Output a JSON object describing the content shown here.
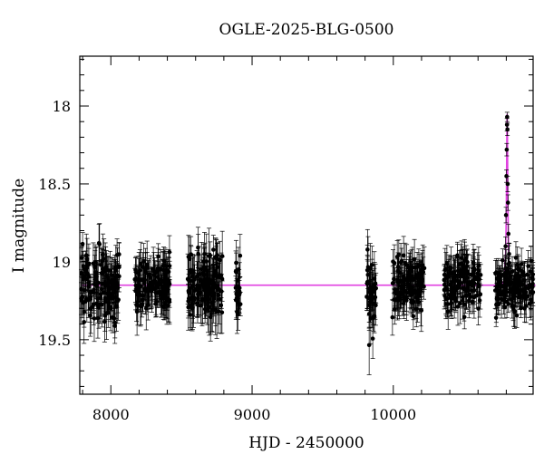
{
  "chart_data": {
    "type": "scatter",
    "title": "OGLE-2025-BLG-0500",
    "xlabel": "HJD - 2450000",
    "ylabel": "I magnitude",
    "xlim": [
      7780,
      10990
    ],
    "ylim": [
      19.85,
      17.68
    ],
    "y_inverted": true,
    "grid": false,
    "x_ticks": [
      8000,
      9000,
      10000
    ],
    "x_tick_labels": [
      "8000",
      "9000",
      "10000"
    ],
    "y_ticks": [
      18,
      18.5,
      19,
      19.5
    ],
    "y_tick_labels": [
      "18",
      "18.5",
      "19",
      "19.5"
    ],
    "series": [
      {
        "kind": "points_with_errorbars",
        "color": "#000000",
        "baseline_mag": 19.15,
        "seasons": [
          {
            "x_range": [
              7790,
              8060
            ],
            "mag_center": 19.15,
            "mag_scatter": 0.12,
            "err": 0.12
          },
          {
            "x_range": [
              8170,
              8420
            ],
            "mag_center": 19.15,
            "mag_scatter": 0.1,
            "err": 0.11
          },
          {
            "x_range": [
              8540,
              8790
            ],
            "mag_center": 19.16,
            "mag_scatter": 0.12,
            "err": 0.13
          },
          {
            "x_range": [
              8880,
              8920
            ],
            "mag_center": 19.15,
            "mag_scatter": 0.12,
            "err": 0.12
          },
          {
            "x_range": [
              9810,
              9880
            ],
            "mag_center": 19.2,
            "mag_scatter": 0.16,
            "err": 0.14
          },
          {
            "x_range": [
              9990,
              10220
            ],
            "mag_center": 19.15,
            "mag_scatter": 0.1,
            "err": 0.1
          },
          {
            "x_range": [
              10360,
              10620
            ],
            "mag_center": 19.13,
            "mag_scatter": 0.1,
            "err": 0.1
          },
          {
            "x_range": [
              10720,
              10990
            ],
            "mag_center": 19.15,
            "mag_scatter": 0.1,
            "err": 0.09
          }
        ],
        "event_points": [
          {
            "x": 10795,
            "y": 18.9,
            "err": 0.06
          },
          {
            "x": 10798,
            "y": 18.7,
            "err": 0.05
          },
          {
            "x": 10801,
            "y": 18.45,
            "err": 0.04
          },
          {
            "x": 10803,
            "y": 18.28,
            "err": 0.04
          },
          {
            "x": 10805,
            "y": 18.12,
            "err": 0.04
          },
          {
            "x": 10806,
            "y": 18.07,
            "err": 0.03
          },
          {
            "x": 10808,
            "y": 18.15,
            "err": 0.04
          },
          {
            "x": 10810,
            "y": 18.5,
            "err": 0.05
          },
          {
            "x": 10812,
            "y": 18.62,
            "err": 0.05
          },
          {
            "x": 10815,
            "y": 18.82,
            "err": 0.06
          },
          {
            "x": 10820,
            "y": 18.95,
            "err": 0.07
          }
        ]
      },
      {
        "kind": "model_curve",
        "color": "#e040e0",
        "baseline": 19.15,
        "peak_x": 10806,
        "peak_mag": 18.05,
        "t_E": 9,
        "x_start": 7790,
        "x_end": 10990
      }
    ]
  }
}
